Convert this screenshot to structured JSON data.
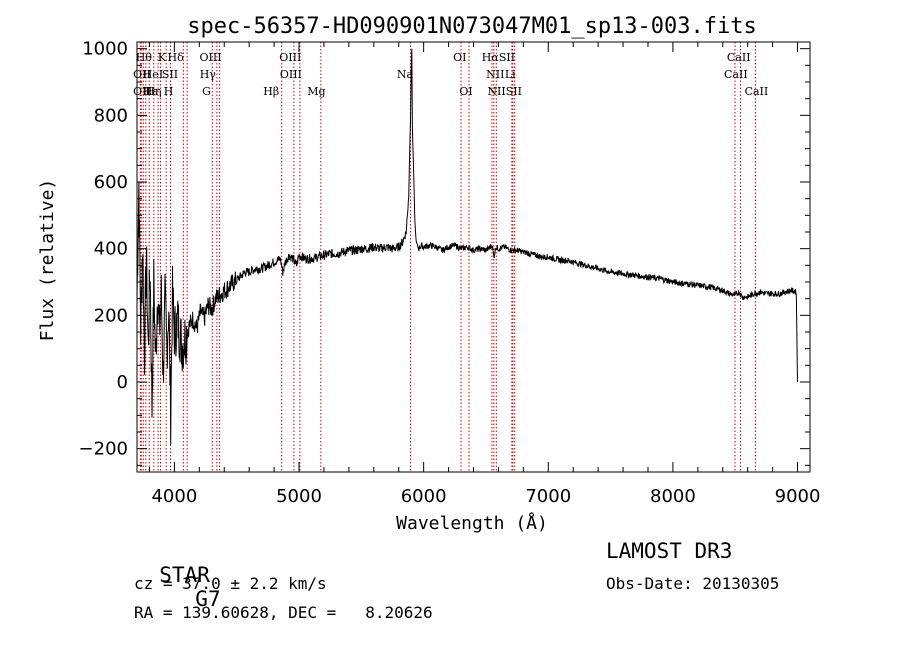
{
  "chart_data": {
    "type": "line",
    "title": "spec-56357-HD090901N073047M01_sp13-003.fits",
    "xlabel": "Wavelength (Å)",
    "ylabel": "Flux (relative)",
    "xlim": [
      3700,
      9100
    ],
    "ylim": [
      -270,
      1020
    ],
    "xticks": [
      4000,
      5000,
      6000,
      7000,
      8000,
      9000
    ],
    "yticks": [
      -200,
      0,
      200,
      400,
      600,
      800,
      1000
    ],
    "grid": false,
    "series": [
      {
        "name": "flux",
        "x": [
          3700,
          3715,
          3730,
          3745,
          3760,
          3775,
          3790,
          3805,
          3820,
          3835,
          3850,
          3865,
          3880,
          3895,
          3910,
          3925,
          3940,
          3955,
          3970,
          3985,
          4000,
          4030,
          4060,
          4090,
          4120,
          4150,
          4180,
          4210,
          4240,
          4270,
          4300,
          4330,
          4360,
          4390,
          4420,
          4450,
          4480,
          4510,
          4540,
          4570,
          4600,
          4650,
          4700,
          4750,
          4800,
          4850,
          4870,
          4890,
          4920,
          4950,
          4980,
          5000,
          5050,
          5100,
          5150,
          5200,
          5250,
          5300,
          5350,
          5400,
          5450,
          5500,
          5550,
          5600,
          5650,
          5700,
          5750,
          5800,
          5830,
          5860,
          5880,
          5895,
          5900,
          5905,
          5910,
          5920,
          5930,
          5940,
          5950,
          5960,
          5980,
          6000,
          6050,
          6100,
          6150,
          6200,
          6250,
          6300,
          6350,
          6400,
          6450,
          6500,
          6550,
          6563,
          6580,
          6600,
          6650,
          6700,
          6750,
          6800,
          6850,
          6900,
          6950,
          7000,
          7050,
          7100,
          7150,
          7200,
          7300,
          7400,
          7500,
          7600,
          7700,
          7800,
          7900,
          8000,
          8100,
          8200,
          8300,
          8400,
          8450,
          8500,
          8530,
          8560,
          8600,
          8650,
          8700,
          8750,
          8800,
          8850,
          8900,
          8950,
          8990,
          9000
        ],
        "values": [
          250,
          600,
          150,
          420,
          80,
          380,
          100,
          350,
          -80,
          300,
          60,
          280,
          150,
          260,
          20,
          240,
          100,
          230,
          -100,
          260,
          150,
          180,
          110,
          140,
          170,
          190,
          160,
          210,
          190,
          230,
          220,
          250,
          260,
          270,
          280,
          290,
          300,
          310,
          320,
          330,
          330,
          340,
          340,
          350,
          360,
          370,
          330,
          360,
          380,
          370,
          350,
          380,
          370,
          370,
          375,
          380,
          385,
          385,
          390,
          395,
          395,
          400,
          400,
          405,
          400,
          405,
          400,
          405,
          420,
          450,
          560,
          800,
          950,
          1000,
          760,
          620,
          480,
          420,
          410,
          400,
          410,
          405,
          410,
          405,
          395,
          405,
          410,
          400,
          405,
          395,
          400,
          395,
          410,
          375,
          405,
          400,
          405,
          395,
          395,
          390,
          385,
          380,
          375,
          375,
          370,
          365,
          365,
          360,
          350,
          340,
          330,
          325,
          320,
          315,
          310,
          300,
          295,
          290,
          285,
          275,
          265,
          260,
          270,
          255,
          255,
          265,
          270,
          265,
          265,
          265,
          270,
          275,
          270,
          0
        ]
      }
    ],
    "lines": [
      {
        "x": 3727,
        "label": "OII"
      },
      {
        "x": 3734,
        "label": "OII"
      },
      {
        "x": 3750,
        "label": "Hθ"
      },
      {
        "x": 3771,
        "label": "Hη"
      },
      {
        "x": 3798,
        "label": "Hθ"
      },
      {
        "x": 3835,
        "label": "Hη"
      },
      {
        "x": 3869,
        "label": "Hε"
      },
      {
        "x": 3889,
        "label": "HeI"
      },
      {
        "x": 3934,
        "label": "K"
      },
      {
        "x": 3969,
        "label": "H"
      },
      {
        "x": 4072,
        "label": "SII"
      },
      {
        "x": 4102,
        "label": "Hδ"
      },
      {
        "x": 4304,
        "label": "G"
      },
      {
        "x": 4341,
        "label": "Hγ"
      },
      {
        "x": 4363,
        "label": "OIII"
      },
      {
        "x": 4861,
        "label": "Hβ"
      },
      {
        "x": 4959,
        "label": "OIII"
      },
      {
        "x": 5007,
        "label": "OIII"
      },
      {
        "x": 5175,
        "label": "Mg"
      },
      {
        "x": 5894,
        "label": "Na"
      },
      {
        "x": 6300,
        "label": "OI"
      },
      {
        "x": 6364,
        "label": "OI"
      },
      {
        "x": 6548,
        "label": "NII"
      },
      {
        "x": 6563,
        "label": "Hα"
      },
      {
        "x": 6583,
        "label": "NII"
      },
      {
        "x": 6708,
        "label": "Li"
      },
      {
        "x": 6716,
        "label": "SII"
      },
      {
        "x": 6731,
        "label": "SII"
      },
      {
        "x": 8498,
        "label": "CaII"
      },
      {
        "x": 8542,
        "label": "CaII"
      },
      {
        "x": 8662,
        "label": "CaII"
      }
    ],
    "line_labels": [
      {
        "x": 3755,
        "row": 0,
        "text": "Hθ"
      },
      {
        "x": 3740,
        "row": 1,
        "text": "OII"
      },
      {
        "x": 3740,
        "row": 2,
        "text": "OII"
      },
      {
        "x": 3828,
        "row": 1,
        "text": "HeI"
      },
      {
        "x": 3808,
        "row": 2,
        "text": "Hε"
      },
      {
        "x": 3832,
        "row": 2,
        "text": "Hη"
      },
      {
        "x": 3900,
        "row": 0,
        "text": "K"
      },
      {
        "x": 3953,
        "row": 2,
        "text": "H"
      },
      {
        "x": 3965,
        "row": 1,
        "text": "SII"
      },
      {
        "x": 4010,
        "row": 0,
        "text": "Hδ"
      },
      {
        "x": 4290,
        "row": 0,
        "text": "OIII"
      },
      {
        "x": 4268,
        "row": 1,
        "text": "Hγ"
      },
      {
        "x": 4258,
        "row": 2,
        "text": "G"
      },
      {
        "x": 4930,
        "row": 0,
        "text": "OIII"
      },
      {
        "x": 4935,
        "row": 1,
        "text": "OIII"
      },
      {
        "x": 4777,
        "row": 2,
        "text": "Hβ"
      },
      {
        "x": 5140,
        "row": 2,
        "text": "Mg"
      },
      {
        "x": 5850,
        "row": 1,
        "text": "Na"
      },
      {
        "x": 6290,
        "row": 0,
        "text": "OI"
      },
      {
        "x": 6340,
        "row": 2,
        "text": "OI"
      },
      {
        "x": 6600,
        "row": 0,
        "text": "HαSII"
      },
      {
        "x": 6575,
        "row": 1,
        "text": "NII"
      },
      {
        "x": 6695,
        "row": 1,
        "text": "Li"
      },
      {
        "x": 6650,
        "row": 2,
        "text": "NIISII"
      },
      {
        "x": 8528,
        "row": 0,
        "text": "CaII"
      },
      {
        "x": 8505,
        "row": 1,
        "text": "CaII"
      },
      {
        "x": 8670,
        "row": 2,
        "text": "CaII"
      }
    ],
    "line_color": "#cc0000"
  },
  "info": {
    "object_type": "STAR",
    "subclass": "G7",
    "survey": "LAMOST DR3",
    "cz": "cz = 37.0 ± 2.2 km/s",
    "obs_date": "Obs-Date: 20130305",
    "radec": "RA = 139.60628, DEC =   8.20626"
  }
}
